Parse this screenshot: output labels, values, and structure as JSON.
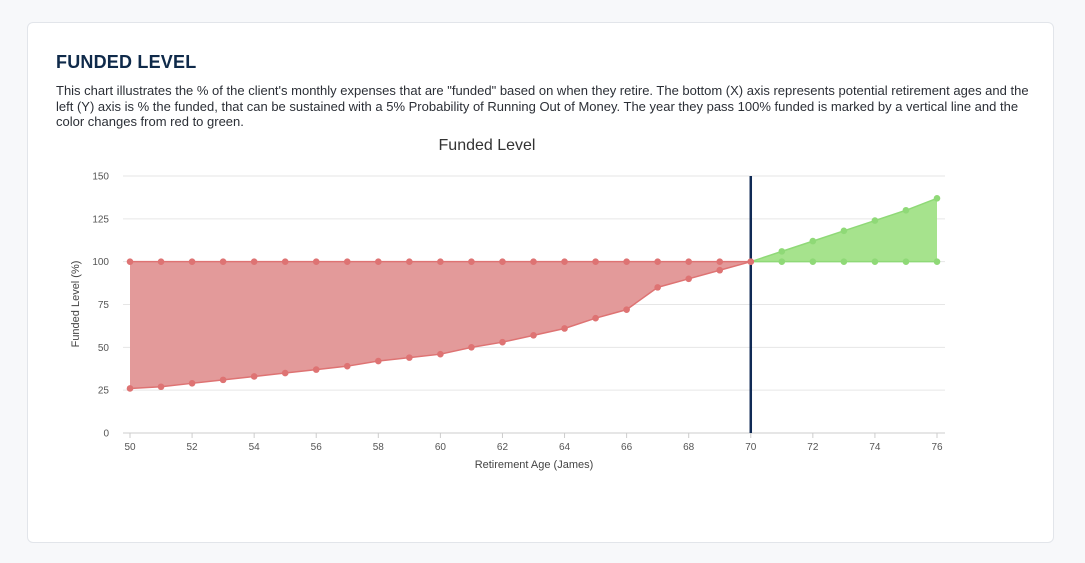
{
  "card": {
    "title": "FUNDED LEVEL",
    "description": "This chart illustrates the % of the client's monthly expenses that are \"funded\" based on when they retire. The bottom (X) axis represents potential retirement ages and the left (Y) axis is % the funded, that can be sustained with a 5% Probability of Running Out of Money. The year they pass 100% funded is marked by a vertical line and the color changes from red to green."
  },
  "colors": {
    "title": "#0f2a4a",
    "underfunded_fill": "#e39a9a",
    "underfunded_point": "#de7373",
    "funded_fill": "#a6e38d",
    "funded_point": "#8fd977",
    "marker_line": "#102a55",
    "grid": "#e6e6e6"
  },
  "chart_data": {
    "type": "area",
    "title": "Funded Level",
    "xlabel": "Retirement Age (James)",
    "ylabel": "Funded Level (%)",
    "x": [
      50,
      51,
      52,
      53,
      54,
      55,
      56,
      57,
      58,
      59,
      60,
      61,
      62,
      63,
      64,
      65,
      66,
      67,
      68,
      69,
      70,
      71,
      72,
      73,
      74,
      75,
      76
    ],
    "series": [
      {
        "values": [
          26,
          27,
          29,
          31,
          33,
          35,
          37,
          39,
          42,
          44,
          46,
          50,
          53,
          57,
          61,
          67,
          72,
          85,
          90,
          95,
          100,
          106,
          112,
          118,
          124,
          130,
          137
        ]
      },
      {
        "values": [
          100,
          100,
          100,
          100,
          100,
          100,
          100,
          100,
          100,
          100,
          100,
          100,
          100,
          100,
          100,
          100,
          100,
          100,
          100,
          100,
          100,
          100,
          100,
          100,
          100,
          100,
          100
        ]
      }
    ],
    "funded_at": 70,
    "xlim": [
      50,
      76
    ],
    "ylim": [
      0,
      150
    ],
    "xticks": [
      50,
      52,
      54,
      56,
      58,
      60,
      62,
      64,
      66,
      68,
      70,
      72,
      74,
      76
    ],
    "yticks": [
      0,
      25,
      50,
      75,
      100,
      125,
      150
    ],
    "grid": true,
    "legend": "none"
  }
}
